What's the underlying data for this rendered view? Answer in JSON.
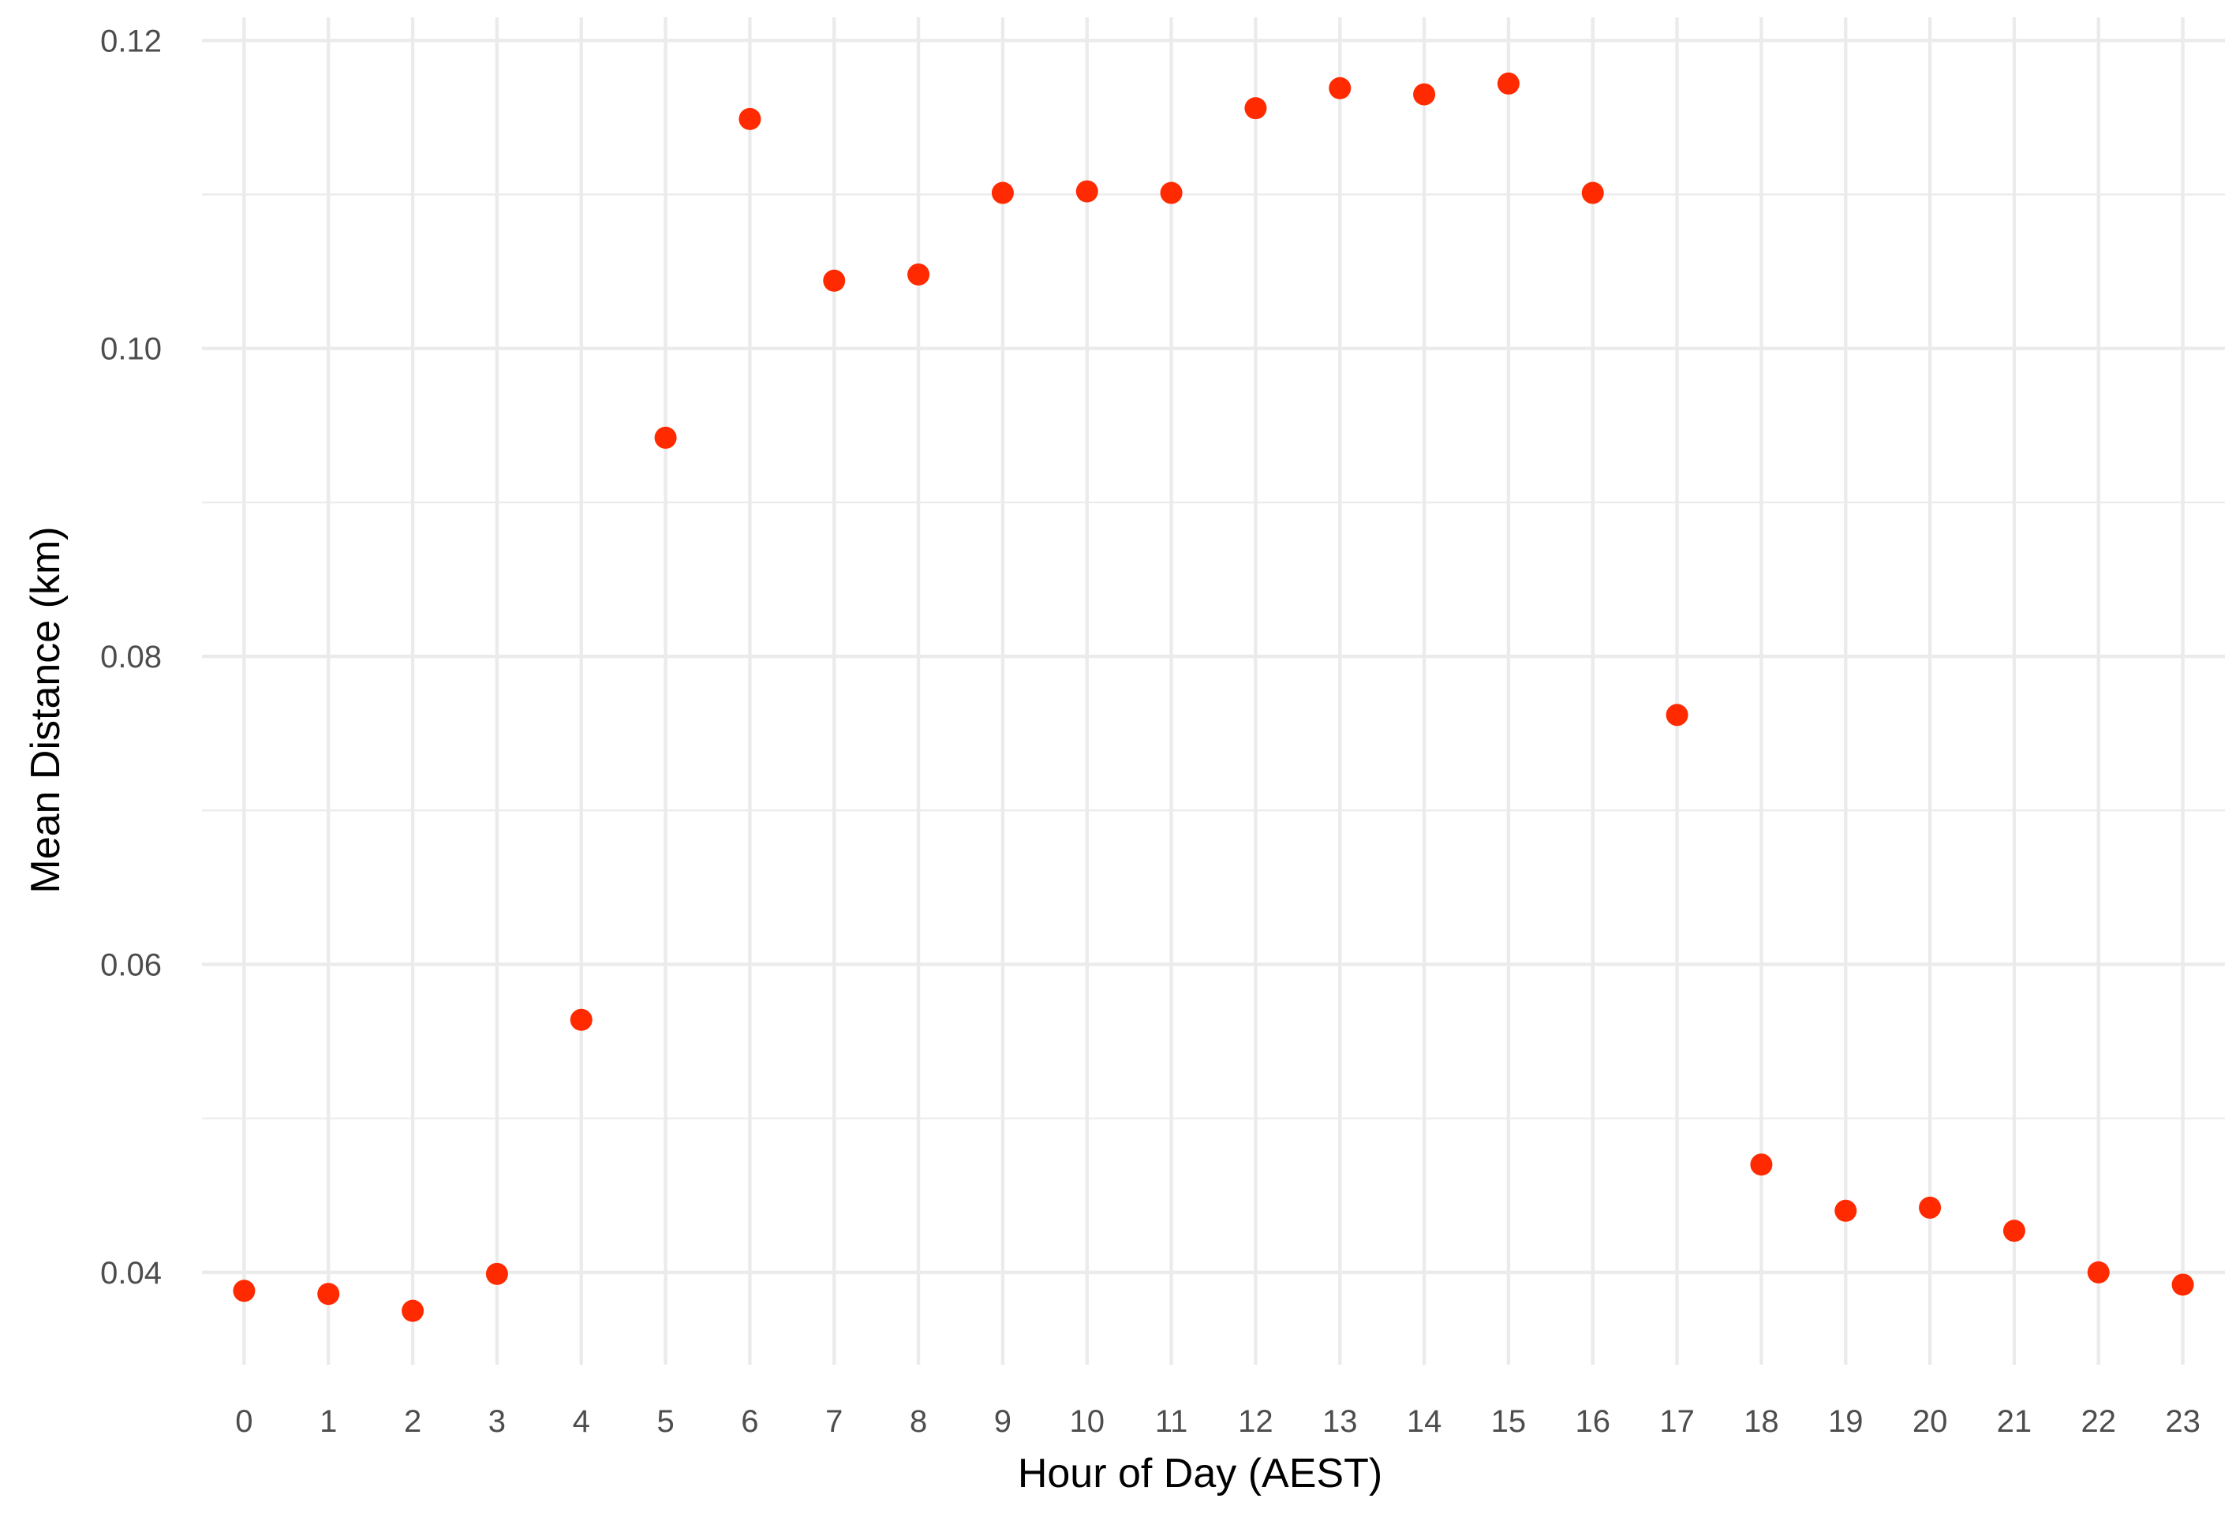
{
  "chart_data": {
    "type": "scatter",
    "title": "",
    "xlabel": "Hour of Day (AEST)",
    "ylabel": "Mean Distance (km)",
    "x": [
      0,
      1,
      2,
      3,
      4,
      5,
      6,
      7,
      8,
      9,
      10,
      11,
      12,
      13,
      14,
      15,
      16,
      17,
      18,
      19,
      20,
      21,
      22,
      23
    ],
    "x_tick_labels": [
      "0",
      "1",
      "2",
      "3",
      "4",
      "5",
      "6",
      "7",
      "8",
      "9",
      "10",
      "11",
      "12",
      "13",
      "14",
      "15",
      "16",
      "17",
      "18",
      "19",
      "20",
      "21",
      "22",
      "23"
    ],
    "y": [
      0.0388,
      0.0386,
      0.0375,
      0.0399,
      0.0564,
      0.0942,
      0.1149,
      0.1044,
      0.1048,
      0.1101,
      0.1102,
      0.1101,
      0.1156,
      0.1169,
      0.1165,
      0.1172,
      0.1101,
      0.0762,
      0.047,
      0.044,
      0.0442,
      0.0427,
      0.04,
      0.0392
    ],
    "y_ticks": [
      0.04,
      0.06,
      0.08,
      0.1,
      0.12
    ],
    "y_tick_labels": [
      "0.04",
      "0.06",
      "0.08",
      "0.10",
      "0.12"
    ],
    "xlim": [
      -0.5,
      23.5
    ],
    "ylim": [
      0.034,
      0.1215
    ],
    "grid": true,
    "point_color": "#ff2a00"
  }
}
